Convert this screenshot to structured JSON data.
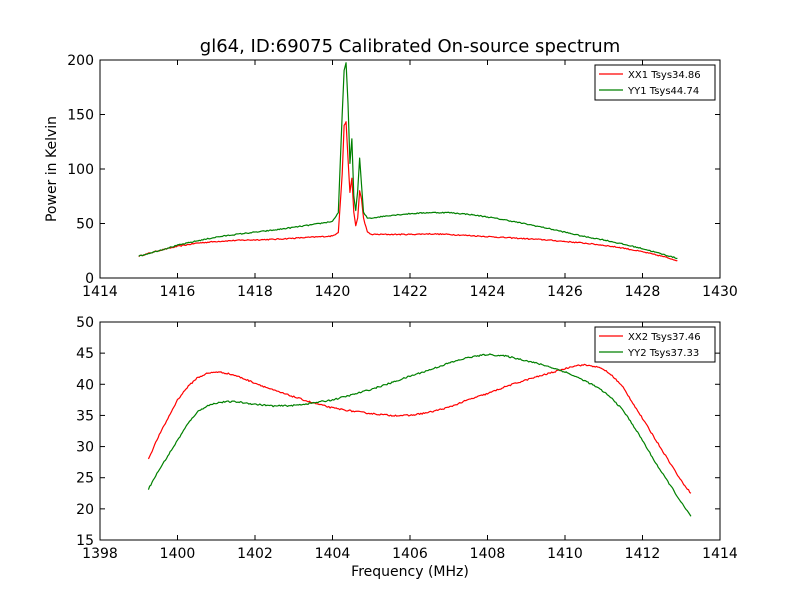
{
  "chart_data": [
    {
      "type": "line",
      "title": "gl64, ID:69075 Calibrated On-source spectrum",
      "xlabel": "",
      "ylabel": "Power in Kelvin",
      "xlim": [
        1414,
        1430
      ],
      "ylim": [
        0,
        200
      ],
      "xticks": [
        1414,
        1416,
        1418,
        1420,
        1422,
        1424,
        1426,
        1428,
        1430
      ],
      "yticks": [
        0,
        50,
        100,
        150,
        200
      ],
      "grid": false,
      "legend_position": "top-right",
      "series": [
        {
          "name": "XX1 Tsys34.86",
          "color": "#ff0000",
          "x": [
            1415.0,
            1415.5,
            1416.0,
            1416.5,
            1417.0,
            1417.5,
            1418.0,
            1418.5,
            1419.0,
            1419.5,
            1420.0,
            1420.15,
            1420.25,
            1420.3,
            1420.35,
            1420.4,
            1420.45,
            1420.5,
            1420.55,
            1420.6,
            1420.65,
            1420.7,
            1420.75,
            1420.8,
            1420.9,
            1421.0,
            1421.5,
            1422.0,
            1422.5,
            1423.0,
            1423.5,
            1424.0,
            1424.5,
            1425.0,
            1425.5,
            1426.0,
            1426.5,
            1427.0,
            1427.5,
            1428.0,
            1428.5,
            1428.9
          ],
          "values": [
            20,
            25,
            29,
            32,
            33.5,
            34.5,
            35,
            35.5,
            36.5,
            37.5,
            38.5,
            42,
            95,
            140,
            143,
            110,
            78,
            92,
            60,
            48,
            55,
            80,
            72,
            55,
            42,
            40,
            40,
            40,
            40.5,
            40,
            39,
            38,
            37,
            36,
            35,
            33.5,
            32,
            30,
            27.5,
            24,
            20,
            16
          ]
        },
        {
          "name": "YY1 Tsys44.74",
          "color": "#008000",
          "x": [
            1415.0,
            1415.5,
            1416.0,
            1416.5,
            1417.0,
            1417.5,
            1418.0,
            1418.5,
            1419.0,
            1419.5,
            1420.0,
            1420.15,
            1420.25,
            1420.3,
            1420.35,
            1420.4,
            1420.45,
            1420.5,
            1420.55,
            1420.6,
            1420.65,
            1420.7,
            1420.75,
            1420.8,
            1420.9,
            1421.0,
            1421.5,
            1422.0,
            1422.5,
            1423.0,
            1423.5,
            1424.0,
            1424.5,
            1425.0,
            1425.5,
            1426.0,
            1426.5,
            1427.0,
            1427.5,
            1428.0,
            1428.5,
            1428.9
          ],
          "values": [
            20,
            25,
            30,
            34,
            37.5,
            40,
            42,
            44,
            46.5,
            49,
            52,
            60,
            150,
            190,
            198,
            160,
            105,
            128,
            75,
            62,
            80,
            110,
            85,
            60,
            55,
            55,
            57.5,
            59,
            60,
            60,
            58.5,
            56,
            53,
            49.5,
            46,
            42,
            38,
            35,
            31,
            27,
            22,
            18
          ]
        }
      ]
    },
    {
      "type": "line",
      "title": "",
      "xlabel": "Frequency (MHz)",
      "ylabel": "",
      "xlim": [
        1398,
        1414
      ],
      "ylim": [
        15,
        50
      ],
      "xticks": [
        1398,
        1400,
        1402,
        1404,
        1406,
        1408,
        1410,
        1412,
        1414
      ],
      "yticks": [
        15,
        20,
        25,
        30,
        35,
        40,
        45,
        50
      ],
      "grid": false,
      "legend_position": "top-right",
      "series": [
        {
          "name": "XX2 Tsys37.46",
          "color": "#ff0000",
          "x": [
            1399.25,
            1399.5,
            1399.75,
            1400.0,
            1400.25,
            1400.5,
            1400.75,
            1401.0,
            1401.25,
            1401.5,
            1401.75,
            1402.0,
            1402.5,
            1403.0,
            1403.5,
            1404.0,
            1404.5,
            1405.0,
            1405.5,
            1406.0,
            1406.5,
            1407.0,
            1407.5,
            1408.0,
            1408.5,
            1409.0,
            1409.5,
            1410.0,
            1410.25,
            1410.5,
            1410.75,
            1411.0,
            1411.25,
            1411.5,
            1411.75,
            1412.0,
            1412.25,
            1412.5,
            1412.75,
            1413.0,
            1413.25
          ],
          "values": [
            28,
            31.5,
            34.5,
            37.5,
            39.5,
            41,
            41.7,
            42,
            41.8,
            41.4,
            40.8,
            40.2,
            39,
            38,
            37,
            36.2,
            35.7,
            35.3,
            35,
            35,
            35.5,
            36.3,
            37.5,
            38.5,
            39.7,
            40.7,
            41.6,
            42.5,
            43,
            43.1,
            42.9,
            42.4,
            41.2,
            39.5,
            37,
            34.5,
            32,
            29.5,
            27,
            24.5,
            22.5
          ]
        },
        {
          "name": "YY2 Tsys37.33",
          "color": "#008000",
          "x": [
            1399.25,
            1399.5,
            1399.75,
            1400.0,
            1400.25,
            1400.5,
            1400.75,
            1401.0,
            1401.25,
            1401.5,
            1401.75,
            1402.0,
            1402.5,
            1403.0,
            1403.5,
            1404.0,
            1404.5,
            1405.0,
            1405.5,
            1406.0,
            1406.5,
            1407.0,
            1407.5,
            1408.0,
            1408.5,
            1409.0,
            1409.5,
            1410.0,
            1410.25,
            1410.5,
            1410.75,
            1411.0,
            1411.25,
            1411.5,
            1411.75,
            1412.0,
            1412.25,
            1412.5,
            1412.75,
            1413.0,
            1413.25
          ],
          "values": [
            23.2,
            26,
            28.5,
            31,
            33.5,
            35.5,
            36.5,
            37,
            37.2,
            37.2,
            37,
            36.8,
            36.5,
            36.6,
            37,
            37.5,
            38.3,
            39.2,
            40.2,
            41.3,
            42.3,
            43.4,
            44.3,
            44.8,
            44.5,
            43.8,
            43,
            42,
            41.3,
            40.6,
            39.8,
            38.8,
            37.5,
            35.8,
            33.5,
            31,
            28.3,
            25.8,
            23.5,
            21,
            18.8
          ]
        }
      ]
    }
  ]
}
